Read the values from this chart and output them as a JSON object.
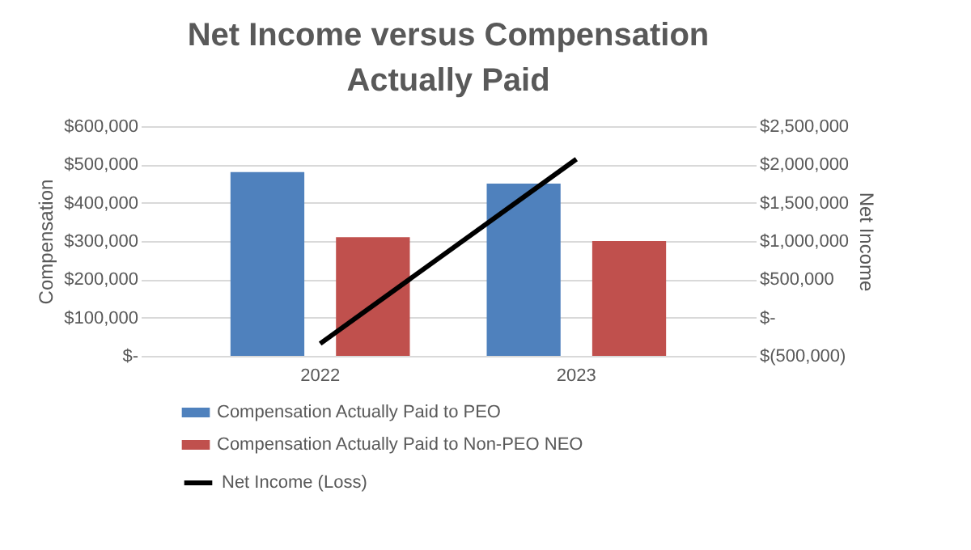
{
  "chart_data": {
    "type": "bar",
    "title": "Net Income versus Compensation Actually Paid",
    "categories": [
      "2022",
      "2023"
    ],
    "series": [
      {
        "name": "Compensation Actually Paid to PEO",
        "color": "#4f81bd",
        "values": [
          480000,
          450000
        ]
      },
      {
        "name": "Compensation Actually Paid to Non-PEO NEO",
        "color": "#c0504d",
        "values": [
          310000,
          300000
        ]
      },
      {
        "name": "Net Income (Loss)",
        "type": "line",
        "axis": "y2",
        "color": "#000000",
        "values": [
          -340000,
          2070000
        ]
      }
    ],
    "ylabel": "Compensation",
    "y2label": "Net Income",
    "ylim": [
      0,
      600000
    ],
    "yticks": [
      {
        "value": 0,
        "label": "$-"
      },
      {
        "value": 100000,
        "label": "$100,000"
      },
      {
        "value": 200000,
        "label": "$200,000"
      },
      {
        "value": 300000,
        "label": "$300,000"
      },
      {
        "value": 400000,
        "label": "$400,000"
      },
      {
        "value": 500000,
        "label": "$500,000"
      },
      {
        "value": 600000,
        "label": "$600,000"
      }
    ],
    "y2lim": [
      -500000,
      2500000
    ],
    "y2ticks": [
      {
        "value": -500000,
        "label": "$(500,000)"
      },
      {
        "value": 0,
        "label": "$-"
      },
      {
        "value": 500000,
        "label": "$500,000"
      },
      {
        "value": 1000000,
        "label": "$1,000,000"
      },
      {
        "value": 1500000,
        "label": "$1,500,000"
      },
      {
        "value": 2000000,
        "label": "$2,000,000"
      },
      {
        "value": 2500000,
        "label": "$2,500,000"
      }
    ],
    "grid": "y",
    "legend": "bottom"
  }
}
